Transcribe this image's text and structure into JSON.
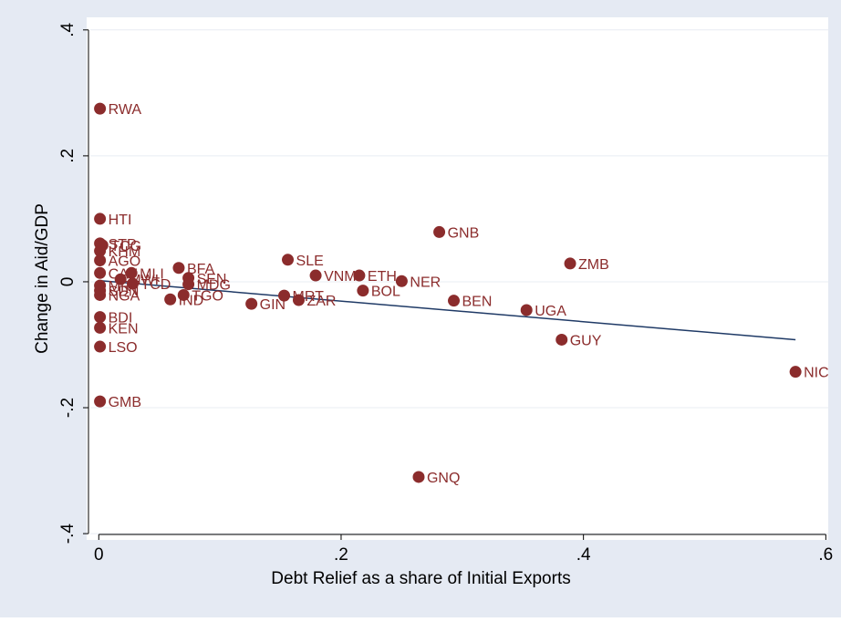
{
  "chart_data": {
    "type": "scatter",
    "title": "",
    "xlabel": "Debt Relief as a share of Initial Exports",
    "ylabel": "Change in Aid/GDP",
    "xlim": [
      -0.01,
      0.602
    ],
    "ylim": [
      -0.41,
      0.42
    ],
    "x_ticks": [
      0,
      0.2,
      0.4,
      0.6
    ],
    "x_tick_labels": [
      "0",
      ".2",
      ".4",
      ".6"
    ],
    "y_ticks": [
      -0.4,
      -0.2,
      0,
      0.2,
      0.4
    ],
    "y_tick_labels": [
      "-.4",
      "-.2",
      "0",
      ".2",
      ".4"
    ],
    "grid": "horizontal",
    "legend": "none",
    "colors": {
      "outer_background": "#e5eaf3",
      "plot_background": "#ffffff",
      "marker": "#8b2c2c",
      "label": "#8b2c2c",
      "fit_line": "#1f3a66",
      "grid": "#e8ecf3"
    },
    "fit_line": {
      "x": [
        0,
        0.575
      ],
      "y": [
        0.002,
        -0.092
      ]
    },
    "points": [
      {
        "label": "RWA",
        "x": 0.001,
        "y": 0.275
      },
      {
        "label": "HTI",
        "x": 0.001,
        "y": 0.1
      },
      {
        "label": "STP",
        "x": 0.001,
        "y": 0.061
      },
      {
        "label": "TCG",
        "x": 0.003,
        "y": 0.058
      },
      {
        "label": "KHM",
        "x": 0.001,
        "y": 0.049
      },
      {
        "label": "AGO",
        "x": 0.001,
        "y": 0.034
      },
      {
        "label": "CAF",
        "x": 0.001,
        "y": 0.014
      },
      {
        "label": "MLI",
        "x": 0.027,
        "y": 0.014
      },
      {
        "label": "MWI",
        "x": 0.018,
        "y": 0.004
      },
      {
        "label": "TCD",
        "x": 0.028,
        "y": -0.003
      },
      {
        "label": "MRT",
        "x": 0.001,
        "y": -0.006
      },
      {
        "label": "SDN",
        "x": 0.001,
        "y": -0.014
      },
      {
        "label": "NGA",
        "x": 0.001,
        "y": -0.021
      },
      {
        "label": "BDI",
        "x": 0.001,
        "y": -0.056
      },
      {
        "label": "KEN",
        "x": 0.001,
        "y": -0.073
      },
      {
        "label": "LSO",
        "x": 0.001,
        "y": -0.103
      },
      {
        "label": "GMB",
        "x": 0.001,
        "y": -0.19
      },
      {
        "label": "BFA",
        "x": 0.066,
        "y": 0.022
      },
      {
        "label": "SEN",
        "x": 0.074,
        "y": 0.006
      },
      {
        "label": "MDG",
        "x": 0.074,
        "y": -0.004
      },
      {
        "label": "TGO",
        "x": 0.07,
        "y": -0.021
      },
      {
        "label": "IND",
        "x": 0.059,
        "y": -0.028
      },
      {
        "label": "SLE",
        "x": 0.156,
        "y": 0.035
      },
      {
        "label": "VNM",
        "x": 0.179,
        "y": 0.01
      },
      {
        "label": "ETH",
        "x": 0.215,
        "y": 0.01
      },
      {
        "label": "NER",
        "x": 0.25,
        "y": 0.001
      },
      {
        "label": "BOL",
        "x": 0.218,
        "y": -0.014
      },
      {
        "label": "MRT",
        "x": 0.153,
        "y": -0.022
      },
      {
        "label": "ZAR",
        "x": 0.165,
        "y": -0.029
      },
      {
        "label": "GIN",
        "x": 0.126,
        "y": -0.035
      },
      {
        "label": "GNB",
        "x": 0.281,
        "y": 0.079
      },
      {
        "label": "BEN",
        "x": 0.293,
        "y": -0.03
      },
      {
        "label": "ZMB",
        "x": 0.389,
        "y": 0.029
      },
      {
        "label": "UGA",
        "x": 0.353,
        "y": -0.045
      },
      {
        "label": "GUY",
        "x": 0.382,
        "y": -0.092
      },
      {
        "label": "GNQ",
        "x": 0.264,
        "y": -0.31
      },
      {
        "label": "NIC",
        "x": 0.575,
        "y": -0.143
      }
    ]
  }
}
